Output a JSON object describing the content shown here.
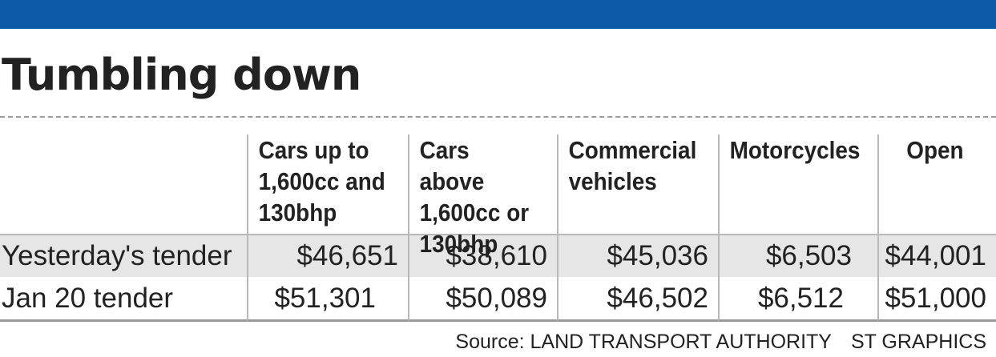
{
  "colors": {
    "top_bar": "#0a5aa8",
    "row_shade": "#e6e6e6",
    "rule": "#b8b8b8"
  },
  "title": "Tumbling down",
  "chart_data": {
    "type": "table",
    "title": "Tumbling down",
    "columns": [
      "",
      "Cars up to\n1,600cc and\n130bhp",
      "Cars above\n1,600cc or\n130bhp",
      "Commercial\nvehicles",
      "Motorcycles",
      "Open"
    ],
    "rows": [
      {
        "label": "Yesterday's tender",
        "values": [
          "$46,651",
          "$38,610",
          "$45,036",
          "$6,503",
          "$44,001"
        ]
      },
      {
        "label": "Jan 20 tender",
        "values": [
          "$51,301",
          "$50,089",
          "$46,502",
          "$6,512",
          "$51,000"
        ]
      }
    ]
  },
  "footer": {
    "source": "Source: LAND TRANSPORT AUTHORITY",
    "credit": "ST GRAPHICS"
  }
}
